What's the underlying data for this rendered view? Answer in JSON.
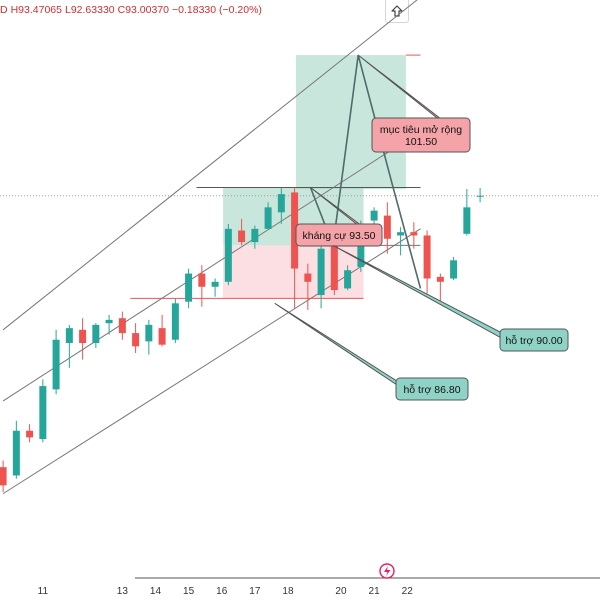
{
  "header": {
    "partial_lead": "D",
    "high": "H93.47065",
    "low": "L92.63330",
    "close": "C93.00370",
    "change": "−0.18330 (−0.20%)"
  },
  "toolbar": {
    "scroll_icon": "up-arrow-icon"
  },
  "colors": {
    "up": "#26a69a",
    "down": "#ef5350",
    "target_zone": "#a5d6c5",
    "loss_zone": "#f8c9cf",
    "note_red": "#f4a3a8",
    "note_green": "#8fd3c7",
    "trend_line": "#777777",
    "path_line": "#4f6b6a"
  },
  "chart_data": {
    "type": "candlestick",
    "x_axis": {
      "ticks": [
        {
          "label": "11",
          "x": 3
        },
        {
          "label": "13",
          "x": 9
        },
        {
          "label": "14",
          "x": 11.5
        },
        {
          "label": "15",
          "x": 14
        },
        {
          "label": "16",
          "x": 16.5
        },
        {
          "label": "17",
          "x": 19
        },
        {
          "label": "18",
          "x": 21.5
        },
        {
          "label": "20",
          "x": 25.5
        },
        {
          "label": "21",
          "x": 28
        },
        {
          "label": "22",
          "x": 30.5
        }
      ],
      "xlim": [
        0,
        31.5
      ]
    },
    "y_axis": {
      "ylim": [
        72.5,
        103.5
      ],
      "grid": false
    },
    "candles": [
      {
        "i": 0,
        "o": 76.6,
        "h": 77.0,
        "l": 75.1,
        "c": 75.5
      },
      {
        "i": 1,
        "o": 76.1,
        "h": 79.4,
        "l": 75.9,
        "c": 78.8
      },
      {
        "i": 2,
        "o": 78.8,
        "h": 79.2,
        "l": 78.1,
        "c": 78.4
      },
      {
        "i": 3,
        "o": 78.3,
        "h": 81.9,
        "l": 78.1,
        "c": 81.5
      },
      {
        "i": 4,
        "o": 81.3,
        "h": 84.9,
        "l": 81.0,
        "c": 84.3
      },
      {
        "i": 5,
        "o": 84.1,
        "h": 85.2,
        "l": 82.6,
        "c": 85.0
      },
      {
        "i": 6,
        "o": 84.9,
        "h": 85.6,
        "l": 83.1,
        "c": 84.1
      },
      {
        "i": 7,
        "o": 84.1,
        "h": 85.3,
        "l": 83.8,
        "c": 85.2
      },
      {
        "i": 8,
        "o": 85.3,
        "h": 85.8,
        "l": 84.6,
        "c": 85.5
      },
      {
        "i": 9,
        "o": 85.6,
        "h": 86.0,
        "l": 84.3,
        "c": 84.7
      },
      {
        "i": 10,
        "o": 84.7,
        "h": 85.3,
        "l": 83.5,
        "c": 83.9
      },
      {
        "i": 11,
        "o": 84.2,
        "h": 85.5,
        "l": 83.4,
        "c": 85.2
      },
      {
        "i": 12,
        "o": 85.0,
        "h": 85.8,
        "l": 83.9,
        "c": 84.0
      },
      {
        "i": 13,
        "o": 84.3,
        "h": 86.8,
        "l": 84.1,
        "c": 86.5
      },
      {
        "i": 14,
        "o": 86.6,
        "h": 88.6,
        "l": 86.2,
        "c": 88.3
      },
      {
        "i": 15,
        "o": 88.3,
        "h": 88.8,
        "l": 86.3,
        "c": 87.5
      },
      {
        "i": 16,
        "o": 87.5,
        "h": 88.0,
        "l": 86.9,
        "c": 87.8
      },
      {
        "i": 17,
        "o": 87.8,
        "h": 91.3,
        "l": 87.6,
        "c": 91.0
      },
      {
        "i": 18,
        "o": 90.9,
        "h": 91.6,
        "l": 90.0,
        "c": 90.2
      },
      {
        "i": 19,
        "o": 90.2,
        "h": 91.2,
        "l": 89.8,
        "c": 91.0
      },
      {
        "i": 20,
        "o": 91.0,
        "h": 92.6,
        "l": 91.0,
        "c": 92.3
      },
      {
        "i": 21,
        "o": 92.0,
        "h": 93.5,
        "l": 91.3,
        "c": 93.1
      },
      {
        "i": 22,
        "o": 93.2,
        "h": 93.5,
        "l": 86.2,
        "c": 88.6
      },
      {
        "i": 23,
        "o": 88.3,
        "h": 88.9,
        "l": 86.1,
        "c": 87.8
      },
      {
        "i": 24,
        "o": 87.0,
        "h": 90.1,
        "l": 86.2,
        "c": 89.8
      },
      {
        "i": 25,
        "o": 90.2,
        "h": 90.4,
        "l": 87.0,
        "c": 87.3
      },
      {
        "i": 26,
        "o": 87.4,
        "h": 88.8,
        "l": 87.3,
        "c": 88.5
      },
      {
        "i": 27,
        "o": 88.7,
        "h": 91.5,
        "l": 88.4,
        "c": 91.1
      },
      {
        "i": 28,
        "o": 91.5,
        "h": 92.3,
        "l": 91.2,
        "c": 92.1
      },
      {
        "i": 29,
        "o": 91.8,
        "h": 92.6,
        "l": 89.5,
        "c": 90.4
      },
      {
        "i": 30,
        "o": 90.6,
        "h": 91.1,
        "l": 89.4,
        "c": 90.8
      },
      {
        "i": 31,
        "o": 90.8,
        "h": 91.4,
        "l": 89.8,
        "c": 90.6
      },
      {
        "i": 32,
        "o": 90.6,
        "h": 90.9,
        "l": 87.1,
        "c": 88.0
      },
      {
        "i": 33,
        "o": 88.1,
        "h": 88.3,
        "l": 86.4,
        "c": 87.8
      },
      {
        "i": 34,
        "o": 88.0,
        "h": 89.3,
        "l": 87.9,
        "c": 89.1
      },
      {
        "i": 35,
        "o": 90.7,
        "h": 93.4,
        "l": 90.6,
        "c": 92.3
      },
      {
        "i": 36,
        "o": 93.0,
        "h": 93.47,
        "l": 92.6,
        "c": 93.0
      }
    ],
    "current_price_line": 93.0,
    "trend_channel": {
      "upper": [
        [
          0,
          84.9
        ],
        [
          31.5,
          105.0
        ]
      ],
      "middle": [
        [
          0,
          80.6
        ],
        [
          31.5,
          96.9
        ]
      ],
      "lower": [
        [
          0,
          75.0
        ],
        [
          31.5,
          91.0
        ]
      ]
    },
    "zones": [
      {
        "kind": "target",
        "x": [
          22.1,
          30.4
        ],
        "y": [
          93.4,
          101.5
        ]
      },
      {
        "kind": "target",
        "x": [
          16.6,
          27.2
        ],
        "y": [
          90.0,
          93.5
        ]
      },
      {
        "kind": "loss",
        "x": [
          16.6,
          27.2
        ],
        "y": [
          86.8,
          90.0
        ]
      }
    ],
    "levels": [
      {
        "y": 101.5,
        "x": [
          30.4,
          31.5
        ]
      },
      {
        "y": 93.5,
        "x": [
          14.6,
          31.5
        ]
      },
      {
        "y": 90.0,
        "x": [
          27.2,
          31.5
        ]
      },
      {
        "y": 86.8,
        "x": [
          9.6,
          27.2
        ]
      }
    ],
    "forecast_path": [
      [
        23.2,
        93.5
      ],
      [
        24.9,
        90.0
      ],
      [
        26.8,
        101.5
      ],
      [
        29.4,
        93.6
      ],
      [
        31.5,
        87.4
      ]
    ],
    "annotations": [
      {
        "text_lines": [
          "mục tiêu mở rộng",
          "101.50"
        ],
        "style": "red",
        "anchor": [
          26.8,
          101.5
        ]
      },
      {
        "text_lines": [
          "kháng cự 93.50"
        ],
        "style": "red",
        "anchor": [
          23.2,
          93.5
        ]
      },
      {
        "text_lines": [
          "hỗ trợ 90.00"
        ],
        "style": "green",
        "anchor": [
          24.9,
          90.0
        ]
      },
      {
        "text_lines": [
          "hỗ trợ 86.80"
        ],
        "style": "green",
        "anchor": [
          20.5,
          86.5
        ]
      }
    ]
  }
}
